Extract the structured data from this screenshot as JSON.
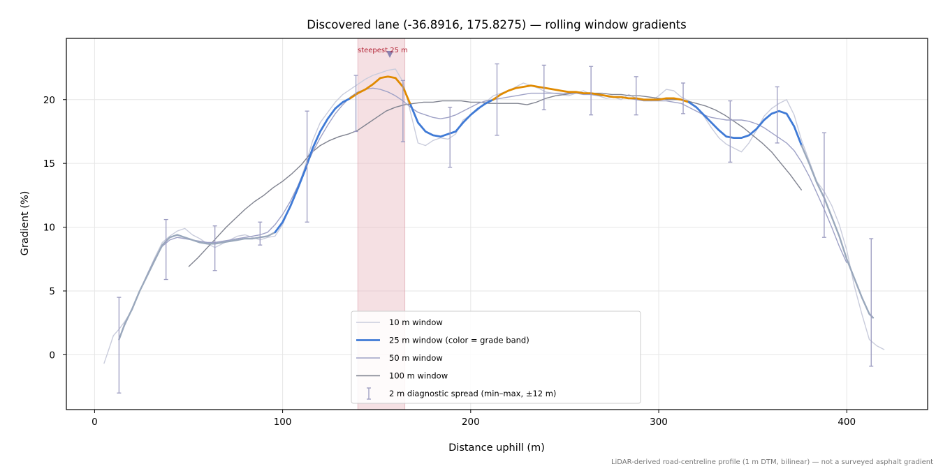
{
  "chart_data": {
    "type": "line",
    "title": "Discovered lane (-36.8916, 175.8275) — rolling window gradients",
    "xlabel": "Distance uphill (m)",
    "ylabel": "Gradient (%)",
    "xlim": [
      -15,
      443
    ],
    "ylim": [
      -4.3,
      24.8
    ],
    "xticks": [
      0,
      100,
      200,
      300,
      400
    ],
    "yticks": [
      0,
      5,
      10,
      15,
      20
    ],
    "grid": true,
    "legend_position": "bottom-center",
    "highlight_band": {
      "x0": 140,
      "x1": 165,
      "label": "steepest 25 m",
      "marker_x": 157,
      "marker_y": 23.6
    },
    "footnote": "LiDAR-derived road-centreline profile (1 m DTM, bilinear) — not a surveyed asphalt gradient",
    "colors": {
      "w10": "#c9ccdc",
      "w25_base": "#3f7ad6",
      "w25_steep": "#e08a00",
      "w25_grey": "#9aa8bc",
      "w50": "#9ea1c6",
      "w100": "#7f828f",
      "error": "#9a9ac0",
      "band": "#e7b4bd",
      "annotation": "#b22234"
    },
    "legend": [
      {
        "label": "10 m window",
        "key": "w10"
      },
      {
        "label": "25 m window (color = grade band)",
        "key": "w25"
      },
      {
        "label": "50 m window",
        "key": "w50"
      },
      {
        "label": "100 m window",
        "key": "w100"
      },
      {
        "label": "2 m diagnostic spread (min–max, ±12 m)",
        "key": "err"
      }
    ],
    "series": [
      {
        "name": "10 m window",
        "key": "w10",
        "x": [
          5,
          8,
          10,
          13,
          16,
          20,
          24,
          28,
          32,
          36,
          40,
          44,
          48,
          52,
          56,
          60,
          64,
          68,
          72,
          76,
          80,
          84,
          88,
          92,
          96,
          100,
          104,
          108,
          112,
          116,
          120,
          124,
          128,
          132,
          136,
          140,
          144,
          148,
          152,
          156,
          160,
          164,
          168,
          172,
          176,
          180,
          184,
          188,
          192,
          196,
          200,
          204,
          208,
          212,
          216,
          220,
          224,
          228,
          232,
          236,
          240,
          244,
          248,
          252,
          256,
          260,
          264,
          268,
          272,
          276,
          280,
          284,
          288,
          292,
          296,
          300,
          304,
          308,
          312,
          316,
          320,
          324,
          328,
          332,
          336,
          340,
          344,
          348,
          352,
          356,
          360,
          364,
          368,
          372,
          376,
          380,
          384,
          388,
          392,
          396,
          400,
          404,
          408,
          412,
          416,
          420
        ],
        "y": [
          -0.7,
          0.6,
          1.5,
          2.0,
          2.6,
          3.5,
          5.0,
          6.3,
          7.6,
          8.8,
          9.3,
          9.7,
          9.9,
          9.4,
          9.1,
          8.7,
          8.4,
          8.7,
          9.0,
          9.3,
          9.4,
          9.2,
          9.0,
          9.2,
          9.3,
          10.2,
          11.6,
          13.0,
          14.8,
          16.8,
          18.2,
          19.0,
          19.8,
          20.4,
          20.8,
          21.2,
          21.6,
          21.9,
          22.1,
          22.3,
          22.4,
          21.4,
          19.0,
          16.6,
          16.4,
          16.8,
          17.0,
          16.9,
          17.3,
          18.4,
          18.8,
          19.2,
          19.8,
          20.3,
          20.5,
          20.7,
          21.0,
          21.3,
          21.1,
          20.9,
          20.6,
          20.5,
          20.4,
          20.3,
          20.5,
          20.7,
          20.4,
          20.3,
          20.1,
          20.2,
          20.0,
          20.4,
          20.1,
          20.0,
          19.9,
          20.3,
          20.8,
          20.7,
          20.2,
          19.9,
          19.4,
          18.7,
          17.8,
          17.0,
          16.5,
          16.2,
          15.9,
          16.6,
          17.6,
          18.7,
          19.3,
          19.7,
          20.0,
          18.8,
          16.8,
          15.2,
          13.6,
          12.8,
          11.7,
          10.2,
          8.2,
          5.4,
          3.2,
          1.2,
          0.7,
          0.4
        ]
      },
      {
        "name": "25 m window (color = grade band)",
        "key": "w25",
        "x": [
          13,
          16,
          20,
          24,
          28,
          32,
          36,
          40,
          44,
          48,
          52,
          56,
          60,
          64,
          68,
          72,
          76,
          80,
          84,
          88,
          92,
          96,
          100,
          104,
          108,
          112,
          116,
          120,
          124,
          128,
          132,
          136,
          140,
          144,
          148,
          152,
          156,
          160,
          164,
          168,
          172,
          176,
          180,
          184,
          188,
          192,
          196,
          200,
          204,
          208,
          212,
          216,
          220,
          224,
          228,
          232,
          236,
          240,
          244,
          248,
          252,
          256,
          260,
          264,
          268,
          272,
          276,
          280,
          284,
          288,
          292,
          296,
          300,
          304,
          308,
          312,
          316,
          320,
          324,
          328,
          332,
          336,
          340,
          344,
          348,
          352,
          356,
          360,
          364,
          368,
          372,
          376,
          380,
          384,
          388,
          392,
          396,
          400,
          404,
          408,
          412,
          414
        ],
        "y": [
          1.2,
          2.4,
          3.6,
          5.0,
          6.2,
          7.4,
          8.6,
          9.2,
          9.4,
          9.2,
          9.0,
          8.8,
          8.7,
          8.7,
          8.8,
          8.9,
          9.0,
          9.1,
          9.1,
          9.2,
          9.3,
          9.6,
          10.4,
          11.6,
          13.0,
          14.5,
          16.2,
          17.5,
          18.5,
          19.3,
          19.8,
          20.1,
          20.5,
          20.8,
          21.2,
          21.7,
          21.8,
          21.7,
          21.0,
          19.6,
          18.2,
          17.5,
          17.2,
          17.1,
          17.3,
          17.5,
          18.2,
          18.8,
          19.3,
          19.7,
          20.0,
          20.4,
          20.7,
          20.9,
          21.0,
          21.1,
          21.0,
          20.9,
          20.8,
          20.7,
          20.6,
          20.6,
          20.5,
          20.5,
          20.4,
          20.3,
          20.2,
          20.2,
          20.1,
          20.1,
          20.0,
          20.0,
          20.0,
          20.1,
          20.1,
          20.0,
          19.8,
          19.4,
          18.8,
          18.2,
          17.6,
          17.1,
          17.0,
          17.0,
          17.2,
          17.7,
          18.4,
          18.9,
          19.1,
          18.9,
          17.9,
          16.4,
          15.0,
          13.5,
          12.3,
          10.8,
          9.3,
          7.5,
          6.0,
          4.5,
          3.2,
          2.9
        ]
      },
      {
        "name": "50 m window",
        "key": "w50",
        "x": [
          13,
          16,
          20,
          24,
          28,
          32,
          36,
          40,
          44,
          48,
          52,
          56,
          60,
          64,
          68,
          72,
          76,
          80,
          84,
          88,
          92,
          96,
          100,
          104,
          108,
          112,
          116,
          120,
          124,
          128,
          132,
          136,
          140,
          144,
          148,
          152,
          156,
          160,
          164,
          168,
          172,
          176,
          180,
          184,
          188,
          192,
          196,
          200,
          204,
          208,
          212,
          216,
          220,
          224,
          228,
          232,
          236,
          240,
          244,
          248,
          252,
          256,
          260,
          264,
          268,
          272,
          276,
          280,
          284,
          288,
          292,
          296,
          300,
          304,
          308,
          312,
          316,
          320,
          324,
          328,
          332,
          336,
          340,
          344,
          348,
          352,
          356,
          360,
          364,
          368,
          372,
          376,
          380,
          384,
          388,
          392,
          396,
          400
        ],
        "y": [
          1.2,
          2.3,
          3.6,
          5.0,
          6.3,
          7.5,
          8.5,
          9.0,
          9.2,
          9.1,
          9.0,
          8.9,
          8.8,
          8.8,
          8.9,
          9.0,
          9.1,
          9.2,
          9.3,
          9.4,
          9.6,
          10.2,
          11.0,
          12.0,
          13.2,
          14.6,
          15.9,
          17.0,
          18.0,
          18.9,
          19.6,
          20.2,
          20.6,
          20.8,
          20.9,
          20.8,
          20.6,
          20.3,
          19.9,
          19.4,
          19.0,
          18.8,
          18.6,
          18.5,
          18.6,
          18.8,
          19.1,
          19.4,
          19.7,
          19.9,
          20.0,
          20.1,
          20.2,
          20.3,
          20.4,
          20.5,
          20.5,
          20.5,
          20.5,
          20.5,
          20.5,
          20.5,
          20.4,
          20.4,
          20.3,
          20.3,
          20.2,
          20.2,
          20.1,
          20.0,
          19.9,
          19.9,
          19.9,
          19.9,
          19.8,
          19.7,
          19.4,
          19.1,
          18.8,
          18.6,
          18.5,
          18.4,
          18.4,
          18.4,
          18.3,
          18.1,
          17.8,
          17.4,
          17.0,
          16.6,
          16.0,
          15.1,
          14.0,
          12.7,
          11.4,
          10.0,
          8.5,
          7.2
        ]
      },
      {
        "name": "100 m window",
        "key": "w100",
        "x": [
          50,
          55,
          60,
          65,
          70,
          75,
          80,
          85,
          90,
          95,
          100,
          105,
          110,
          115,
          120,
          125,
          130,
          135,
          140,
          145,
          150,
          155,
          160,
          165,
          170,
          175,
          180,
          185,
          190,
          195,
          200,
          205,
          210,
          215,
          220,
          225,
          230,
          235,
          240,
          245,
          250,
          255,
          260,
          265,
          270,
          275,
          280,
          285,
          290,
          295,
          300,
          305,
          310,
          315,
          320,
          325,
          330,
          335,
          340,
          345,
          350,
          355,
          360,
          365,
          370,
          376
        ],
        "y": [
          6.9,
          7.6,
          8.4,
          9.2,
          10.0,
          10.7,
          11.4,
          12.0,
          12.5,
          13.1,
          13.6,
          14.2,
          14.9,
          15.8,
          16.4,
          16.8,
          17.1,
          17.3,
          17.6,
          18.1,
          18.6,
          19.1,
          19.4,
          19.6,
          19.7,
          19.8,
          19.8,
          19.9,
          19.9,
          19.9,
          19.8,
          19.8,
          19.7,
          19.7,
          19.7,
          19.7,
          19.6,
          19.8,
          20.1,
          20.3,
          20.4,
          20.5,
          20.5,
          20.5,
          20.5,
          20.4,
          20.4,
          20.3,
          20.3,
          20.2,
          20.1,
          20.0,
          20.0,
          19.9,
          19.7,
          19.5,
          19.2,
          18.8,
          18.3,
          17.8,
          17.2,
          16.6,
          15.9,
          15.0,
          14.1,
          12.9
        ]
      }
    ],
    "w25_segments": [
      {
        "x0": 13,
        "x1": 96,
        "band": "grey"
      },
      {
        "x0": 96,
        "x1": 136,
        "band": "base"
      },
      {
        "x0": 136,
        "x1": 168,
        "band": "steep"
      },
      {
        "x0": 168,
        "x1": 212,
        "band": "base"
      },
      {
        "x0": 212,
        "x1": 316,
        "band": "steep"
      },
      {
        "x0": 316,
        "x1": 376,
        "band": "base"
      },
      {
        "x0": 376,
        "x1": 414,
        "band": "grey"
      }
    ],
    "error_bars": [
      {
        "x": 13,
        "low": -3.0,
        "high": 4.5
      },
      {
        "x": 38,
        "low": 5.9,
        "high": 10.6
      },
      {
        "x": 64,
        "low": 6.6,
        "high": 10.1
      },
      {
        "x": 88,
        "low": 8.6,
        "high": 10.4
      },
      {
        "x": 113,
        "low": 10.4,
        "high": 19.1
      },
      {
        "x": 139,
        "low": 17.5,
        "high": 21.9
      },
      {
        "x": 164,
        "low": 16.7,
        "high": 21.5
      },
      {
        "x": 189,
        "low": 14.7,
        "high": 19.4
      },
      {
        "x": 214,
        "low": 17.2,
        "high": 22.8
      },
      {
        "x": 239,
        "low": 19.2,
        "high": 22.7
      },
      {
        "x": 264,
        "low": 18.8,
        "high": 22.6
      },
      {
        "x": 288,
        "low": 18.8,
        "high": 21.8
      },
      {
        "x": 313,
        "low": 18.9,
        "high": 21.3
      },
      {
        "x": 338,
        "low": 15.1,
        "high": 19.9
      },
      {
        "x": 363,
        "low": 16.6,
        "high": 21.0
      },
      {
        "x": 388,
        "low": 9.2,
        "high": 17.4
      },
      {
        "x": 413,
        "low": -0.9,
        "high": 9.1
      }
    ]
  }
}
